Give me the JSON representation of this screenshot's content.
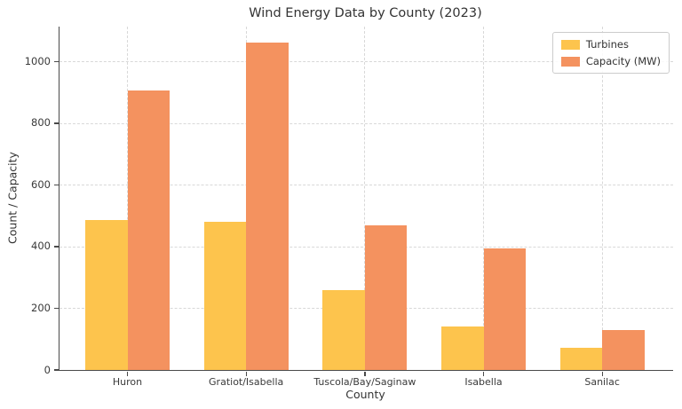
{
  "chart_data": {
    "type": "bar",
    "title": "Wind Energy Data by County (2023)",
    "xlabel": "County",
    "ylabel": "Count / Capacity",
    "categories": [
      "Huron",
      "Gratiot/Isabella",
      "Tuscola/Bay/Saginaw",
      "Isabella",
      "Sanilac"
    ],
    "series": [
      {
        "name": "Turbines",
        "color": "#FDC44D",
        "values": [
          485,
          481,
          258,
          140,
          72
        ]
      },
      {
        "name": "Capacity (MW)",
        "color": "#F4925F",
        "values": [
          905,
          1060,
          470,
          395,
          128
        ]
      }
    ],
    "ylim": [
      0,
      1113
    ],
    "yticks": [
      0,
      200,
      400,
      600,
      800,
      1000
    ],
    "grid": true,
    "grid_style": "dashed",
    "legend_position": "upper right",
    "colors": {
      "spine": "#4a4a4a",
      "gridline": "#d8d8d8",
      "text": "#333333"
    }
  }
}
